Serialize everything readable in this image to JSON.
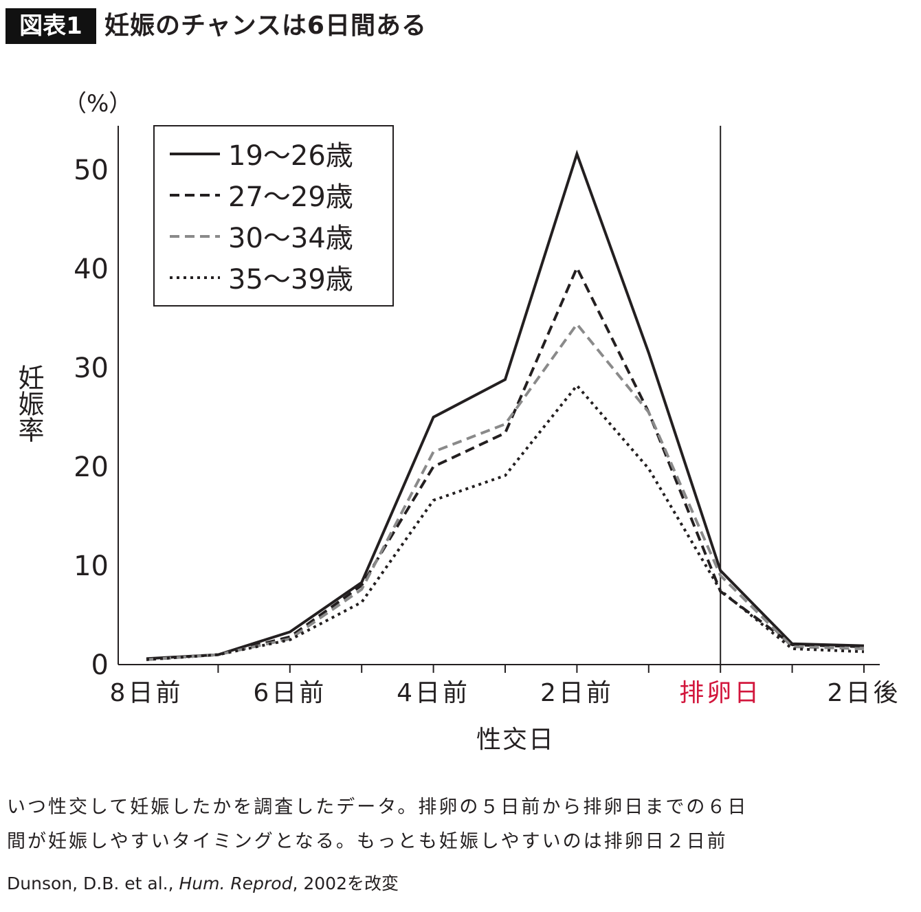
{
  "header": {
    "badge": "図表1",
    "title": "妊娠のチャンスは6日間ある"
  },
  "chart_data": {
    "type": "line",
    "title": "妊娠のチャンスは6日間ある",
    "xlabel": "性交日",
    "ylabel": "妊娠率",
    "yunit": "（%）",
    "ylim": [
      0,
      54
    ],
    "yticks": [
      0,
      10,
      20,
      30,
      40,
      50
    ],
    "x": [
      -8,
      -7,
      -6,
      -5,
      -4,
      -3,
      -2,
      -1,
      0,
      1,
      2
    ],
    "xtick_labels": [
      {
        "x": -8,
        "label": "8日前"
      },
      {
        "x": -6,
        "label": "6日前"
      },
      {
        "x": -4,
        "label": "4日前"
      },
      {
        "x": -2,
        "label": "2日前"
      },
      {
        "x": 0,
        "label": "排卵日",
        "color": "#d2163c"
      },
      {
        "x": 2,
        "label": "2日後"
      }
    ],
    "reference_line_x": 0,
    "grid": false,
    "legend_position": "top-left",
    "series": [
      {
        "name": "19〜26歳",
        "style": "solid",
        "color": "#231f20",
        "values": [
          0.6,
          1.0,
          3.3,
          8.3,
          25.0,
          28.8,
          51.6,
          31.5,
          9.5,
          2.1,
          1.9
        ]
      },
      {
        "name": "27〜29歳",
        "style": "dashed",
        "color": "#231f20",
        "values": [
          0.5,
          1.0,
          2.8,
          8.0,
          20.0,
          23.4,
          40.1,
          25.5,
          7.4,
          2.0,
          1.8
        ]
      },
      {
        "name": "30〜34歳",
        "style": "dashed",
        "color": "#8a8a8a",
        "values": [
          0.5,
          1.0,
          2.6,
          7.6,
          21.5,
          24.3,
          34.4,
          25.5,
          9.0,
          1.8,
          1.6
        ]
      },
      {
        "name": "35〜39歳",
        "style": "dotted",
        "color": "#231f20",
        "values": [
          0.5,
          1.0,
          2.5,
          6.3,
          16.6,
          19.1,
          28.2,
          19.8,
          7.5,
          1.6,
          1.3
        ]
      }
    ]
  },
  "caption": {
    "line1": "いつ性交して妊娠したかを調査したデータ。排卵の５日前から排卵日までの６日",
    "line2": "間が妊娠しやすいタイミングとなる。もっとも妊娠しやすいのは排卵日２日前"
  },
  "source": {
    "authors": "Dunson, D.B. et al., ",
    "journal": "Hum. Reprod",
    "rest": ", 2002を改変"
  }
}
